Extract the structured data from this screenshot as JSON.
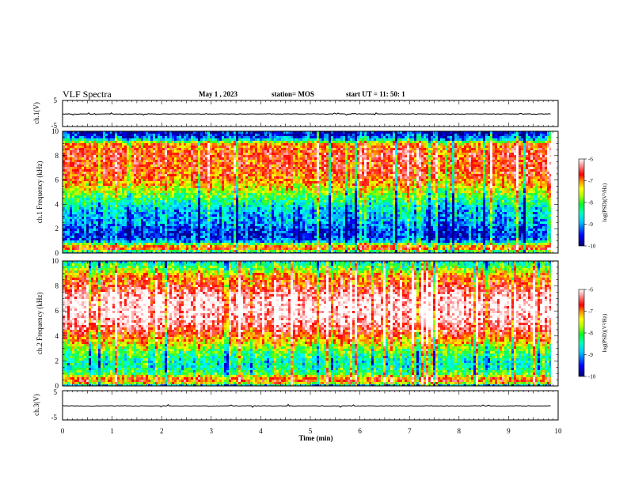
{
  "header": {
    "title": "VLF Spectra",
    "date": "May 1 , 2023",
    "station": "station= MOS",
    "start_ut": "start UT = 11: 50: 1"
  },
  "chart_data": [
    {
      "type": "line",
      "panel": "ch1-waveform",
      "ylabel": "ch.1(V)",
      "ylim": [
        -5,
        5
      ],
      "yticks": [
        "5",
        "-5"
      ],
      "series": [
        {
          "values_approx_constant": -0.2
        }
      ]
    },
    {
      "type": "heatmap",
      "panel": "ch1-spectrogram",
      "ylabel": "ch.1 Frequency (kHz)",
      "ylim": [
        0,
        10
      ],
      "yticks": [
        "0",
        "2",
        "4",
        "6",
        "8",
        "10"
      ],
      "xlim": [
        0,
        9.85
      ],
      "colorbar": {
        "label": "log(PSD)(V²/Hz)",
        "range": [
          -10,
          -6
        ],
        "ticks": [
          "-6",
          "-7",
          "-8",
          "-9",
          "-10"
        ]
      },
      "intensity_profile": {
        "freq_khz": [
          0,
          0.3,
          0.6,
          1.0,
          1.5,
          2.0,
          2.5,
          3.0,
          3.5,
          4.0,
          4.5,
          5.0,
          5.5,
          6.0,
          6.5,
          7.0,
          7.5,
          8.0,
          8.5,
          9.0,
          9.3,
          9.6,
          10.0
        ],
        "log_psd": [
          -9.5,
          -7.0,
          -7.3,
          -9.3,
          -9.6,
          -9.5,
          -9.2,
          -9.1,
          -9.0,
          -8.7,
          -8.3,
          -7.9,
          -7.5,
          -7.2,
          -7.0,
          -6.9,
          -6.9,
          -6.8,
          -7.0,
          -7.3,
          -8.8,
          -9.6,
          -9.8
        ]
      }
    },
    {
      "type": "heatmap",
      "panel": "ch2-spectrogram",
      "ylabel": "ch.2 Frequency (kHz)",
      "ylim": [
        0,
        10
      ],
      "yticks": [
        "0",
        "2",
        "4",
        "6",
        "8",
        "10"
      ],
      "xlim": [
        0,
        9.85
      ],
      "colorbar": {
        "label": "log(PSD)(V²/Hz)",
        "range": [
          -10,
          -6
        ],
        "ticks": [
          "-6",
          "-7",
          "-8",
          "-9",
          "-10"
        ]
      },
      "intensity_profile": {
        "freq_khz": [
          0,
          0.3,
          0.6,
          1.0,
          1.5,
          2.0,
          2.5,
          3.0,
          3.5,
          4.0,
          4.5,
          5.0,
          5.5,
          6.0,
          6.5,
          7.0,
          7.5,
          8.0,
          8.5,
          9.0,
          9.3,
          9.6,
          10.0
        ],
        "log_psd": [
          -9.4,
          -7.0,
          -7.1,
          -8.2,
          -8.6,
          -8.6,
          -8.3,
          -7.9,
          -7.4,
          -7.0,
          -6.6,
          -6.3,
          -6.1,
          -6.0,
          -6.0,
          -6.1,
          -6.4,
          -6.8,
          -7.0,
          -7.4,
          -7.9,
          -8.2,
          -8.8
        ]
      }
    },
    {
      "type": "line",
      "panel": "ch3-waveform",
      "ylabel": "ch.3(V)",
      "ylim": [
        -5,
        5
      ],
      "yticks": [
        "5",
        "-5"
      ],
      "xlabel": "Time (min)",
      "xlim": [
        0,
        10
      ],
      "xticks": [
        "0",
        "1",
        "2",
        "3",
        "4",
        "5",
        "6",
        "7",
        "8",
        "9",
        "10"
      ],
      "series": [
        {
          "values_approx_constant": -0.2
        }
      ]
    }
  ],
  "colors": {
    "colormap": [
      "#00008c",
      "#0000ff",
      "#00aaff",
      "#00ffff",
      "#00ff66",
      "#66ff00",
      "#ffff00",
      "#ff8800",
      "#ff0000",
      "#ff9a9a",
      "#ffffff"
    ]
  }
}
